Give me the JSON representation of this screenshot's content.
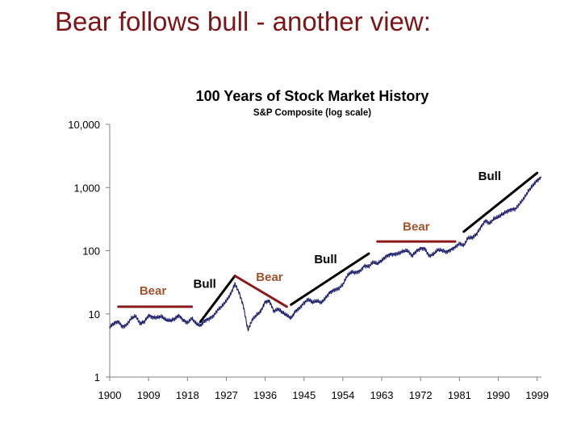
{
  "slide": {
    "title": "Bear follows bull - another view:"
  },
  "colors": {
    "title": "#7f1416",
    "series": "#1c1f6b",
    "bear": "#8b1a1a",
    "bull": "#000000",
    "bear_label": "#a0522d",
    "bull_label": "#000000",
    "axis": "#808080"
  },
  "chart_data": {
    "type": "line",
    "title": "100 Years of Stock Market History",
    "subtitle": "S&P Composite (log scale)",
    "xlabel": "",
    "ylabel": "",
    "y_scale": "log",
    "xlim": [
      1900,
      2000
    ],
    "ylim": [
      1,
      10000
    ],
    "x_ticks": [
      1900,
      1909,
      1918,
      1927,
      1936,
      1945,
      1954,
      1963,
      1972,
      1981,
      1990,
      1999
    ],
    "y_ticks": [
      1,
      10,
      100,
      1000,
      10000
    ],
    "y_tick_labels": [
      "1",
      "10",
      "100",
      "1,000",
      "10,000"
    ],
    "grid": false,
    "legend": "none",
    "series": [
      {
        "x": [
          1900,
          1901,
          1902,
          1903,
          1904,
          1905,
          1906,
          1907,
          1908,
          1909,
          1910,
          1911,
          1912,
          1913,
          1914,
          1915,
          1916,
          1917,
          1918,
          1919,
          1920,
          1921,
          1922,
          1923,
          1924,
          1925,
          1926,
          1927,
          1928,
          1929,
          1930,
          1931,
          1932,
          1933,
          1934,
          1935,
          1936,
          1937,
          1938,
          1939,
          1940,
          1941,
          1942,
          1943,
          1944,
          1945,
          1946,
          1947,
          1948,
          1949,
          1950,
          1951,
          1952,
          1953,
          1954,
          1955,
          1956,
          1957,
          1958,
          1959,
          1960,
          1961,
          1962,
          1963,
          1964,
          1965,
          1966,
          1967,
          1968,
          1969,
          1970,
          1971,
          1972,
          1973,
          1974,
          1975,
          1976,
          1977,
          1978,
          1979,
          1980,
          1981,
          1982,
          1983,
          1984,
          1985,
          1986,
          1987,
          1988,
          1989,
          1990,
          1991,
          1992,
          1993,
          1994,
          1995,
          1996,
          1997,
          1998,
          1999,
          2000
        ],
        "values": [
          6.2,
          7.1,
          7.6,
          6.2,
          6.8,
          8.5,
          9.2,
          7.0,
          7.5,
          9.5,
          8.8,
          8.8,
          9.1,
          8.0,
          7.8,
          8.3,
          9.5,
          8.0,
          7.2,
          8.5,
          7.0,
          6.5,
          7.8,
          8.4,
          9.3,
          11.5,
          13.2,
          16.0,
          20.5,
          30.0,
          21.5,
          13.0,
          5.5,
          8.0,
          9.5,
          11.0,
          15.5,
          16.0,
          11.0,
          12.0,
          10.5,
          9.5,
          8.5,
          11.0,
          12.5,
          15.0,
          17.0,
          15.2,
          16.0,
          15.0,
          18.0,
          22.0,
          24.0,
          25.0,
          29.0,
          40.0,
          46.0,
          45.0,
          48.0,
          58.0,
          56.0,
          66.0,
          62.0,
          70.0,
          81.0,
          88.0,
          88.0,
          91.0,
          98.0,
          100.0,
          82.0,
          98.0,
          109.0,
          108.0,
          82.0,
          88.0,
          103.0,
          101.0,
          95.0,
          104.0,
          114.0,
          130.0,
          120.0,
          160.0,
          160.0,
          185.0,
          240.0,
          300.0,
          270.0,
          320.0,
          340.0,
          380.0,
          420.0,
          450.0,
          460.0,
          560.0,
          680.0,
          880.0,
          1080.0,
          1300.0,
          1450.0
        ]
      }
    ],
    "annotations": [
      {
        "label": "Bear",
        "type": "bear",
        "x_start": 1902,
        "y_start": 13,
        "x_end": 1919,
        "y_end": 13,
        "label_x": 1910,
        "label_y": 20
      },
      {
        "label": "Bull",
        "type": "bull",
        "x_start": 1921,
        "y_start": 7.5,
        "x_end": 1929,
        "y_end": 40,
        "label_x": 1922,
        "label_y": 26
      },
      {
        "label": "Bear",
        "type": "bear",
        "x_start": 1929,
        "y_start": 40,
        "x_end": 1941,
        "y_end": 13,
        "label_x": 1937,
        "label_y": 33
      },
      {
        "label": "Bull",
        "type": "bull",
        "x_start": 1942,
        "y_start": 14,
        "x_end": 1960,
        "y_end": 90,
        "label_x": 1950,
        "label_y": 63
      },
      {
        "label": "Bear",
        "type": "bear",
        "x_start": 1962,
        "y_start": 140,
        "x_end": 1980,
        "y_end": 140,
        "label_x": 1971,
        "label_y": 210
      },
      {
        "label": "Bull",
        "type": "bull",
        "x_start": 1982,
        "y_start": 200,
        "x_end": 1999,
        "y_end": 1700,
        "label_x": 1988,
        "label_y": 1320
      }
    ]
  }
}
